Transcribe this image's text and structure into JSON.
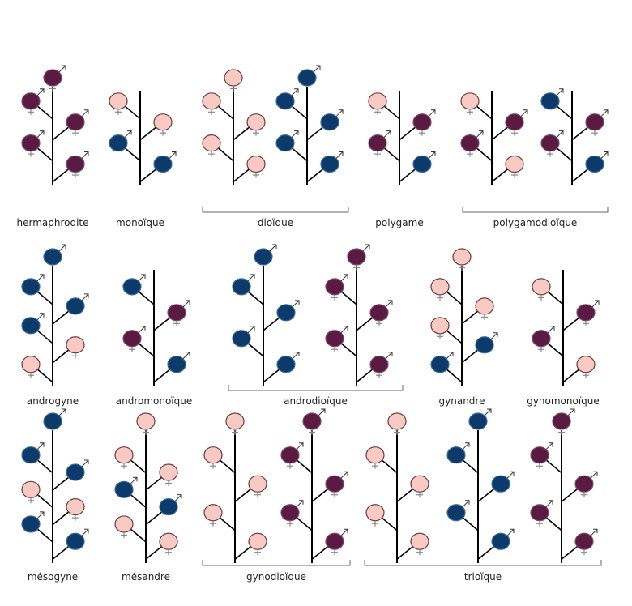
{
  "colors": {
    "female": "#f9c9c4",
    "male": "#0b3a6b",
    "hermaphrodite": "#5b1a42",
    "stem": "#000000",
    "symbol": "#888888",
    "bracket": "#666666"
  },
  "legend_codes": {
    "F": "female flower",
    "M": "male flower",
    "H": "hermaphrodite flower"
  },
  "rows": [
    {
      "systems": [
        {
          "label": "hermaphrodite",
          "plants": [
            {
              "top": "H",
              "sides": [
                "H",
                "H",
                "H",
                "H"
              ]
            }
          ]
        },
        {
          "label": "monoïque",
          "plants": [
            {
              "top": null,
              "sides": [
                "F",
                "F",
                "M",
                "M"
              ]
            }
          ]
        },
        {
          "label": "dioïque",
          "bracket": true,
          "plants": [
            {
              "top": "F",
              "sides": [
                "F",
                "F",
                "F",
                "F"
              ]
            },
            {
              "top": "M",
              "sides": [
                "M",
                "M",
                "M",
                "M"
              ]
            }
          ]
        },
        {
          "label": "polygame",
          "plants": [
            {
              "top": null,
              "sides": [
                "F",
                "H",
                "H",
                "M"
              ]
            }
          ]
        },
        {
          "label": "polygamodioïque",
          "bracket": true,
          "plants": [
            {
              "top": null,
              "sides": [
                "F",
                "H",
                "H",
                "F"
              ]
            },
            {
              "top": null,
              "sides": [
                "M",
                "H",
                "H",
                "M"
              ]
            }
          ]
        }
      ]
    },
    {
      "systems": [
        {
          "label": "androgyne",
          "plants": [
            {
              "top": "M",
              "sides": [
                "M",
                "M",
                "M",
                "F",
                "F"
              ]
            }
          ]
        },
        {
          "label": "andromonoïque",
          "plants": [
            {
              "top": null,
              "sides": [
                "M",
                "H",
                "H",
                "M"
              ]
            }
          ]
        },
        {
          "label": "androdioïque",
          "bracket": true,
          "plants": [
            {
              "top": "M",
              "sides": [
                "M",
                "M",
                "M",
                "M"
              ]
            },
            {
              "top": "H",
              "sides": [
                "H",
                "H",
                "H",
                "H"
              ]
            }
          ]
        },
        {
          "label": "gynandre",
          "plants": [
            {
              "top": "F",
              "sides": [
                "F",
                "F",
                "F",
                "M",
                "M"
              ]
            }
          ]
        },
        {
          "label": "gynomonoïque",
          "plants": [
            {
              "top": null,
              "sides": [
                "F",
                "H",
                "H",
                "F"
              ]
            }
          ]
        }
      ]
    },
    {
      "systems": [
        {
          "label": "mésogyne",
          "plants": [
            {
              "top": "M",
              "sides": [
                "M",
                "M",
                "F",
                "F",
                "M",
                "M"
              ]
            }
          ]
        },
        {
          "label": "mésandre",
          "plants": [
            {
              "top": "F",
              "sides": [
                "F",
                "F",
                "M",
                "M",
                "F",
                "F"
              ]
            }
          ]
        },
        {
          "label": "gynodioïque",
          "bracket": true,
          "plants": [
            {
              "top": "F",
              "sides": [
                "F",
                "F",
                "F",
                "F"
              ]
            },
            {
              "top": "H",
              "sides": [
                "H",
                "H",
                "H",
                "H"
              ]
            }
          ]
        },
        {
          "label": "trioïque",
          "bracket": true,
          "plants": [
            {
              "top": "F",
              "sides": [
                "F",
                "F",
                "F",
                "F"
              ]
            },
            {
              "top": "M",
              "sides": [
                "M",
                "M",
                "M",
                "M"
              ]
            },
            {
              "top": "H",
              "sides": [
                "H",
                "H",
                "H",
                "H"
              ]
            }
          ]
        }
      ]
    }
  ]
}
